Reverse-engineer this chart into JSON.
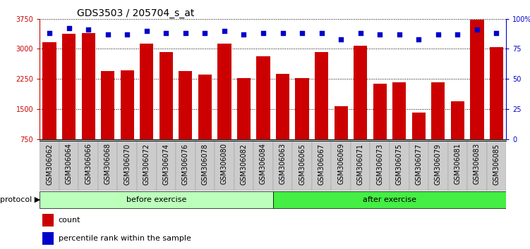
{
  "title": "GDS3503 / 205704_s_at",
  "samples": [
    "GSM306062",
    "GSM306064",
    "GSM306066",
    "GSM306068",
    "GSM306070",
    "GSM306072",
    "GSM306074",
    "GSM306076",
    "GSM306078",
    "GSM306080",
    "GSM306082",
    "GSM306084",
    "GSM306063",
    "GSM306065",
    "GSM306067",
    "GSM306069",
    "GSM306071",
    "GSM306073",
    "GSM306075",
    "GSM306077",
    "GSM306079",
    "GSM306081",
    "GSM306083",
    "GSM306085"
  ],
  "counts": [
    3170,
    3380,
    3390,
    2450,
    2460,
    3130,
    2920,
    2450,
    2370,
    3130,
    2280,
    2820,
    2380,
    2280,
    2920,
    1570,
    3070,
    2130,
    2170,
    1420,
    2170,
    1690,
    3720,
    3050
  ],
  "percentile_ranks": [
    88,
    92,
    91,
    87,
    87,
    90,
    88,
    88,
    88,
    90,
    87,
    88,
    88,
    88,
    88,
    83,
    88,
    87,
    87,
    83,
    87,
    87,
    91,
    88
  ],
  "before_count": 12,
  "after_count": 12,
  "bar_color": "#cc0000",
  "dot_color": "#0000cc",
  "ylim_left": [
    750,
    3750
  ],
  "ylim_right": [
    0,
    100
  ],
  "yticks_left": [
    750,
    1500,
    2250,
    3000,
    3750
  ],
  "ytick_labels_left": [
    "750",
    "1500",
    "2250",
    "3000",
    "3750"
  ],
  "yticks_right": [
    0,
    25,
    50,
    75,
    100
  ],
  "ytick_labels_right": [
    "0",
    "25",
    "50",
    "75",
    "100%"
  ],
  "before_label": "before exercise",
  "after_label": "after exercise",
  "protocol_label": "protocol",
  "legend_count_label": "count",
  "legend_pct_label": "percentile rank within the sample",
  "before_color": "#bbffbb",
  "after_color": "#44ee44",
  "bg_color": "#cccccc",
  "title_fontsize": 10,
  "tick_fontsize": 7,
  "bar_width": 0.7
}
